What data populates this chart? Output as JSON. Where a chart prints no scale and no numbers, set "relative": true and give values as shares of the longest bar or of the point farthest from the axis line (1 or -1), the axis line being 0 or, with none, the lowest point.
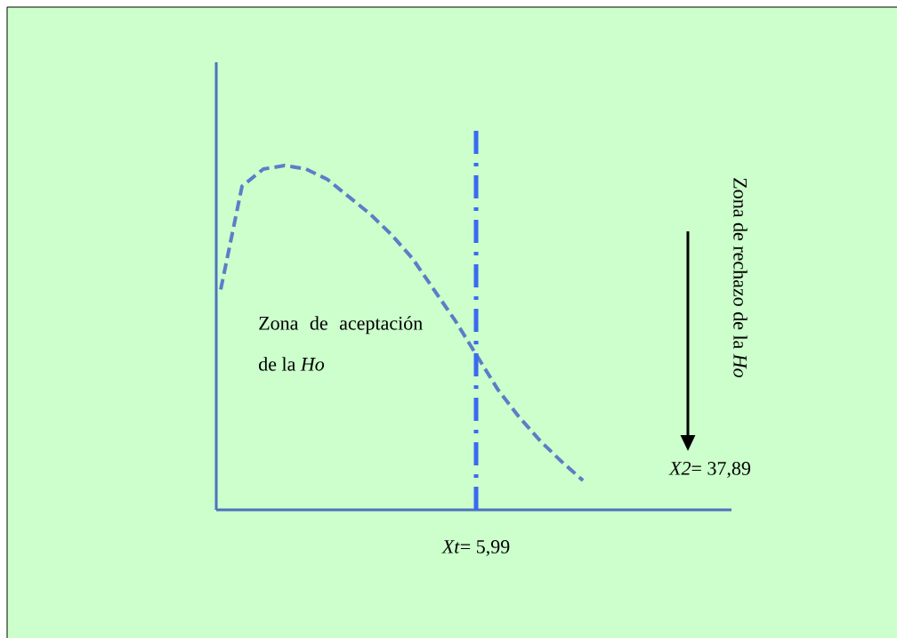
{
  "chart_data": {
    "type": "line",
    "relative": true,
    "marker": "none",
    "line_style": "dashed",
    "categories": [
      null,
      null,
      null,
      null,
      null,
      null,
      null,
      null,
      null,
      null,
      null,
      null,
      null,
      null,
      null,
      null,
      null,
      null
    ],
    "series": [
      {
        "color": "#5b7ec7",
        "values": [
          0.64,
          0.94,
          0.99,
          1,
          0.99,
          0.96,
          0.91,
          0.86,
          0.8,
          0.73,
          0.64,
          0.55,
          0.45,
          0.35,
          0.27,
          0.2,
          0.14,
          0.085
        ]
      }
    ],
    "annotations": [
      "Zona de aceptación de la *Ho*",
      "Zona de rechazo de la *Ho*",
      "*X2*= 37,89",
      "*Xt*= 5,99"
    ]
  }
}
